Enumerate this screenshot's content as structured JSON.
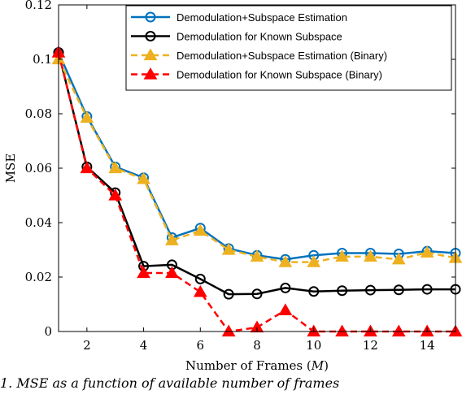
{
  "chart_data": {
    "type": "line",
    "xlabel": "Number of Frames (M)",
    "ylabel": "MSE",
    "xlim": [
      1,
      15
    ],
    "ylim": [
      0,
      0.12
    ],
    "xticks": [
      2,
      4,
      6,
      8,
      10,
      12,
      14
    ],
    "yticks": [
      0,
      0.02,
      0.04,
      0.06,
      0.08,
      0.1,
      0.12
    ],
    "ytick_labels": [
      "0",
      "0.02",
      "0.04",
      "0.06",
      "0.08",
      "0.1",
      "0.12"
    ],
    "grid": false,
    "legend_position": "top-right",
    "x": [
      1,
      2,
      3,
      4,
      5,
      6,
      7,
      8,
      9,
      10,
      11,
      12,
      13,
      14,
      15
    ],
    "series": [
      {
        "name": "Demodulation+Subspace Estimation",
        "color": "#0072BD",
        "dash": "solid",
        "marker": "circle",
        "values": [
          0.1025,
          0.079,
          0.0605,
          0.0565,
          0.0345,
          0.038,
          0.0305,
          0.028,
          0.0265,
          0.028,
          0.0288,
          0.0288,
          0.0285,
          0.0295,
          0.0288
        ]
      },
      {
        "name": "Demodulation for Known Subspace",
        "color": "#000000",
        "dash": "solid",
        "marker": "circle",
        "values": [
          0.1025,
          0.0605,
          0.051,
          0.024,
          0.0245,
          0.0193,
          0.0137,
          0.0138,
          0.016,
          0.0147,
          0.015,
          0.0152,
          0.0153,
          0.0155,
          0.0155
        ]
      },
      {
        "name": "Demodulation+Subspace Estimation (Binary)",
        "color": "#EDB120",
        "dash": "dashed",
        "marker": "triangle",
        "values": [
          0.1,
          0.0785,
          0.06,
          0.056,
          0.0335,
          0.037,
          0.03,
          0.0275,
          0.0255,
          0.0255,
          0.0275,
          0.0275,
          0.0265,
          0.029,
          0.027
        ]
      },
      {
        "name": "Demodulation for Known Subspace (Binary)",
        "color": "#FF0000",
        "dash": "dashed",
        "marker": "triangle",
        "values": [
          0.1025,
          0.06,
          0.05,
          0.0215,
          0.0215,
          0.0145,
          0.0,
          0.0015,
          0.0078,
          0.0,
          0.0,
          0.0,
          0.0,
          0.0,
          0.0
        ]
      }
    ]
  },
  "caption": {
    "text": "1. MSE as a function of available number of frames"
  }
}
